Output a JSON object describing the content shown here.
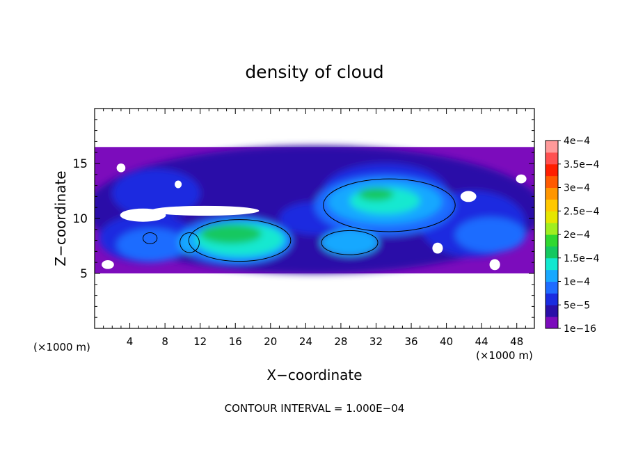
{
  "chart_data": {
    "type": "heatmap",
    "title": "density of cloud",
    "xlabel": "X−coordinate",
    "ylabel": "Z−coordinate",
    "x_unit_left": "(×1000 m)",
    "x_unit_right": "(×1000 m)",
    "footer": "CONTOUR INTERVAL = 1.000E−04",
    "xlim": [
      0,
      50
    ],
    "ylim": [
      0,
      20
    ],
    "x_ticks": [
      "4",
      "8",
      "12",
      "16",
      "20",
      "24",
      "28",
      "32",
      "36",
      "40",
      "44",
      "48"
    ],
    "y_ticks": [
      "5",
      "10",
      "15"
    ],
    "colorbar": {
      "labels": [
        "1e−16",
        "5e−5",
        "1e−4",
        "1.5e−4",
        "2e−4",
        "2.5e−4",
        "3e−4",
        "3.5e−4",
        "4e−4"
      ],
      "levels": [
        1e-16,
        5e-05,
        0.0001,
        0.00015,
        0.0002,
        0.00025,
        0.0003,
        0.00035,
        0.0004
      ],
      "colors": [
        "#7c0cbc",
        "#2a0fa8",
        "#1a2ce0",
        "#1e6cff",
        "#18a8ff",
        "#12e8d0",
        "#14c860",
        "#30d830",
        "#a0ee20",
        "#e6e600",
        "#ffc800",
        "#ff9600",
        "#ff5a00",
        "#ff1e00",
        "#ff5050",
        "#ff9a9a"
      ]
    },
    "cloud_layer_z": [
      5,
      16.5
    ],
    "regions": [
      {
        "level": 0,
        "cx": 25,
        "cy": 10.8,
        "rx": 26,
        "ry": 5.8
      },
      {
        "level": 1,
        "cx": 7,
        "cy": 12.3,
        "rx": 5,
        "ry": 2.2
      },
      {
        "level": 1,
        "cx": 33,
        "cy": 12.5,
        "rx": 7,
        "ry": 2.5
      },
      {
        "level": 1,
        "cx": 6,
        "cy": 8.2,
        "rx": 5.5,
        "ry": 2.2
      },
      {
        "level": 1,
        "cx": 25,
        "cy": 10,
        "rx": 4,
        "ry": 1.5
      },
      {
        "level": 1,
        "cx": 43,
        "cy": 9.5,
        "rx": 6,
        "ry": 3
      },
      {
        "level": 2,
        "cx": 33,
        "cy": 11.2,
        "rx": 8,
        "ry": 2.8
      },
      {
        "level": 2,
        "cx": 6.5,
        "cy": 7.6,
        "rx": 4,
        "ry": 1.5
      },
      {
        "level": 2,
        "cx": 16,
        "cy": 8,
        "rx": 6.5,
        "ry": 2.2
      },
      {
        "level": 2,
        "cx": 45,
        "cy": 8.5,
        "rx": 4,
        "ry": 1.6
      },
      {
        "level": 3,
        "cx": 33,
        "cy": 11.5,
        "rx": 6.5,
        "ry": 2
      },
      {
        "level": 3,
        "cx": 29,
        "cy": 7.8,
        "rx": 3.3,
        "ry": 1.2
      },
      {
        "level": 3,
        "cx": 16.5,
        "cy": 8,
        "rx": 5.5,
        "ry": 1.8
      },
      {
        "level": 3,
        "cx": 10.7,
        "cy": 7.8,
        "rx": 1.2,
        "ry": 1
      },
      {
        "level": 4,
        "cx": 16.5,
        "cy": 8.1,
        "rx": 5,
        "ry": 1.5
      },
      {
        "level": 4,
        "cx": 33,
        "cy": 11.6,
        "rx": 4,
        "ry": 1.2
      },
      {
        "level": 5,
        "cx": 15.5,
        "cy": 8.6,
        "rx": 3.5,
        "ry": 0.9
      },
      {
        "level": 5,
        "cx": 32,
        "cy": 12.2,
        "rx": 2,
        "ry": 0.6
      }
    ],
    "contours_1e-4": [
      {
        "cx": 16.5,
        "cy": 8,
        "rx": 5.8,
        "ry": 1.9
      },
      {
        "cx": 10.8,
        "cy": 7.8,
        "rx": 1.1,
        "ry": 0.9
      },
      {
        "cx": 29,
        "cy": 7.8,
        "rx": 3.2,
        "ry": 1.1
      },
      {
        "cx": 33.5,
        "cy": 11.2,
        "rx": 7.5,
        "ry": 2.4
      },
      {
        "cx": 6.3,
        "cy": 8.2,
        "rx": 0.8,
        "ry": 0.5
      }
    ],
    "gaps": [
      {
        "cx": 12.5,
        "cy": 10.7,
        "rx": 6.2,
        "ry": 0.45
      },
      {
        "cx": 5.5,
        "cy": 10.3,
        "rx": 2.6,
        "ry": 0.6
      },
      {
        "cx": 3,
        "cy": 14.6,
        "rx": 0.5,
        "ry": 0.4
      },
      {
        "cx": 9.5,
        "cy": 13.1,
        "rx": 0.4,
        "ry": 0.35
      },
      {
        "cx": 42.5,
        "cy": 12,
        "rx": 0.9,
        "ry": 0.5
      },
      {
        "cx": 48.5,
        "cy": 13.6,
        "rx": 0.6,
        "ry": 0.4
      },
      {
        "cx": 39,
        "cy": 7.3,
        "rx": 0.6,
        "ry": 0.5
      },
      {
        "cx": 45.5,
        "cy": 5.8,
        "rx": 0.6,
        "ry": 0.5
      },
      {
        "cx": 1.5,
        "cy": 5.8,
        "rx": 0.7,
        "ry": 0.4
      }
    ]
  }
}
